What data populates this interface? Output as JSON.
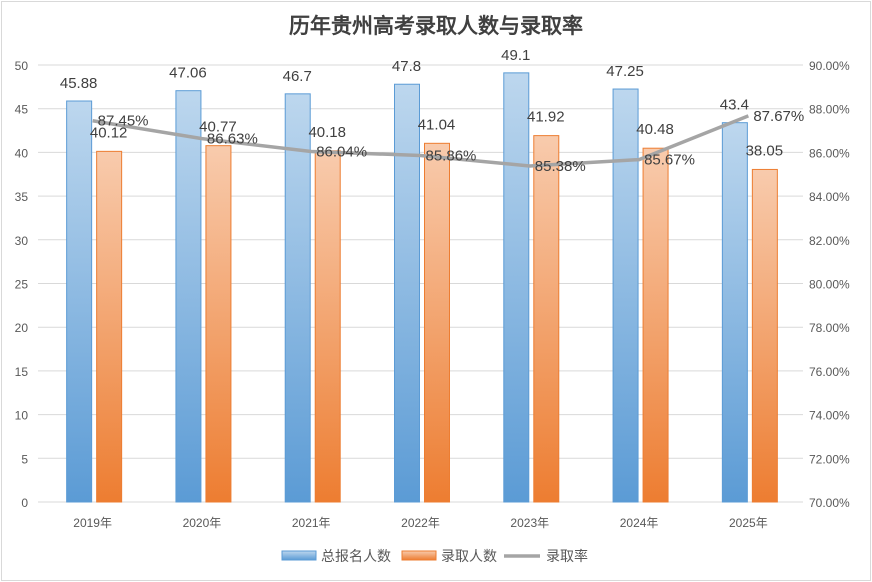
{
  "chart_data": {
    "type": "bar+line",
    "title": "历年贵州高考录取人数与录取率",
    "categories": [
      "2019年",
      "2020年",
      "2021年",
      "2022年",
      "2023年",
      "2024年",
      "2025年"
    ],
    "series": [
      {
        "name": "总报名人数",
        "type": "bar",
        "axis": "left",
        "color": "#5b9bd5",
        "values": [
          45.88,
          47.06,
          46.7,
          47.8,
          49.1,
          47.25,
          43.4
        ],
        "labels": [
          "45.88",
          "47.06",
          "46.7",
          "47.8",
          "49.1",
          "47.25",
          "43.4"
        ]
      },
      {
        "name": "录取人数",
        "type": "bar",
        "axis": "left",
        "color": "#ed7d31",
        "values": [
          40.12,
          40.77,
          40.18,
          41.04,
          41.92,
          40.48,
          38.05
        ],
        "labels": [
          "40.12",
          "40.77",
          "40.18",
          "41.04",
          "41.92",
          "40.48",
          "38.05"
        ]
      },
      {
        "name": "录取率",
        "type": "line",
        "axis": "right",
        "color": "#a5a5a5",
        "values": [
          87.45,
          86.63,
          86.04,
          85.86,
          85.38,
          85.67,
          87.67
        ],
        "labels": [
          "87.45%",
          "86.63%",
          "86.04%",
          "85.86%",
          "85.38%",
          "85.67%",
          "87.67%"
        ]
      }
    ],
    "y_left": {
      "range": [
        0,
        50
      ],
      "ticks": [
        "0",
        "5",
        "10",
        "15",
        "20",
        "25",
        "30",
        "35",
        "40",
        "45",
        "50"
      ]
    },
    "y_right": {
      "range": [
        70,
        90
      ],
      "ticks": [
        "70.00%",
        "72.00%",
        "74.00%",
        "76.00%",
        "78.00%",
        "80.00%",
        "82.00%",
        "84.00%",
        "86.00%",
        "88.00%",
        "90.00%"
      ]
    },
    "grid": true,
    "legend": "bottom"
  }
}
